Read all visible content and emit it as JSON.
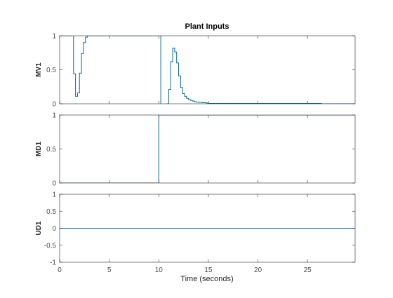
{
  "chart_data": {
    "type": "line",
    "title": "Plant Inputs",
    "xlabel": "Time (seconds)",
    "xlim": [
      0,
      29.8
    ],
    "xticks": [
      0,
      5,
      10,
      15,
      20,
      25
    ],
    "xtick_labels": [
      "0",
      "5",
      "10",
      "15",
      "20",
      "25"
    ],
    "grid": false,
    "line_color": "#0b6a9c",
    "axes_color": "#262626",
    "subplots": [
      {
        "ylabel": "MV1",
        "ylim": [
          0,
          1
        ],
        "yticks": [
          0,
          0.5,
          1
        ],
        "ytick_labels": [
          "0",
          "0.5",
          "1"
        ],
        "series": {
          "step": "post",
          "x": [
            0,
            1.0,
            1.2,
            1.4,
            1.6,
            1.8,
            2.0,
            2.2,
            2.4,
            2.6,
            2.8,
            3.0,
            10.0,
            10.2,
            10.4,
            10.6,
            10.8,
            11.0,
            11.2,
            11.4,
            11.6,
            11.8,
            12.0,
            12.2,
            12.4,
            12.6,
            12.8,
            13.0,
            13.2,
            13.4,
            13.6,
            13.8,
            14.0,
            14.4,
            14.8,
            15.0,
            26.4,
            29.8
          ],
          "y": [
            1,
            1,
            1.4,
            0.44,
            0.11,
            0.16,
            0.45,
            0.74,
            0.9,
            0.98,
            1.0,
            1.0,
            1.8,
            -0.1,
            -0.1,
            -0.1,
            0.0,
            0.21,
            0.62,
            0.82,
            0.76,
            0.6,
            0.41,
            0.24,
            0.15,
            0.11,
            0.08,
            0.06,
            0.05,
            0.04,
            0.03,
            0.025,
            0.02,
            0.015,
            0.01,
            0.005,
            0.0,
            0.0
          ]
        }
      },
      {
        "ylabel": "MD1",
        "ylim": [
          0,
          1
        ],
        "yticks": [
          0,
          0.5,
          1
        ],
        "ytick_labels": [
          "0",
          "0.5",
          "1"
        ],
        "series": {
          "step": "post",
          "x": [
            0,
            10.0,
            29.8
          ],
          "y": [
            0,
            1,
            1
          ]
        }
      },
      {
        "ylabel": "UD1",
        "ylim": [
          -1,
          1
        ],
        "yticks": [
          -1,
          -0.5,
          0,
          0.5,
          1
        ],
        "ytick_labels": [
          "-1",
          "-0.5",
          "0",
          "0.5",
          "1"
        ],
        "series": {
          "step": "post",
          "x": [
            0,
            29.8
          ],
          "y": [
            0,
            0
          ]
        }
      }
    ]
  }
}
